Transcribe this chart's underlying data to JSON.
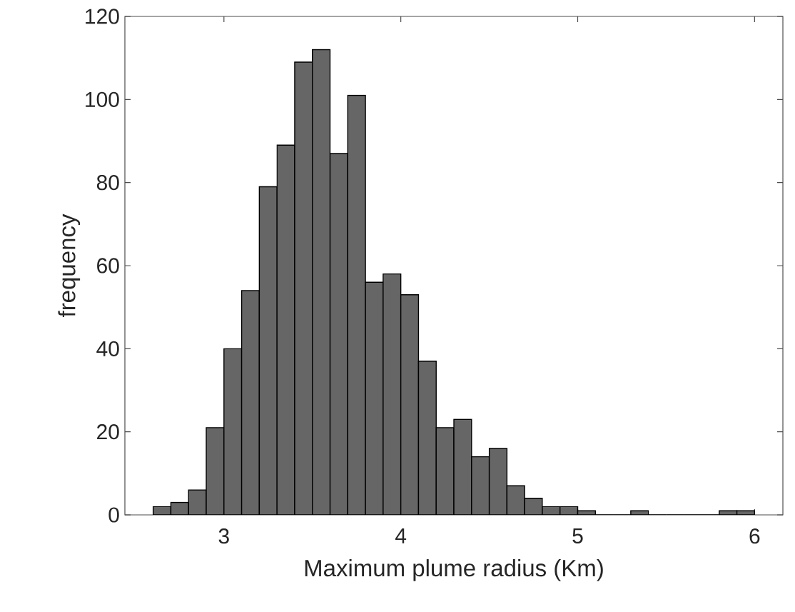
{
  "chart_data": {
    "type": "histogram",
    "xlabel": "Maximum plume radius (Km)",
    "ylabel": "frequency",
    "bins": [
      2.6,
      2.7,
      2.8,
      2.9,
      3.0,
      3.1,
      3.2,
      3.3,
      3.4,
      3.5,
      3.6,
      3.7,
      3.8,
      3.9,
      4.0,
      4.1,
      4.2,
      4.3,
      4.4,
      4.5,
      4.6,
      4.7,
      4.8,
      4.9,
      5.0,
      5.1,
      5.2,
      5.3,
      5.4,
      5.5,
      5.6,
      5.7,
      5.8,
      5.9,
      6.0
    ],
    "values": [
      2,
      3,
      6,
      21,
      40,
      54,
      79,
      89,
      109,
      112,
      87,
      101,
      56,
      58,
      53,
      37,
      21,
      23,
      14,
      16,
      7,
      4,
      2,
      2,
      1,
      0,
      0,
      1,
      0,
      0,
      0,
      0,
      1,
      1
    ],
    "color": "#666666",
    "xlim": [
      2.44,
      6.16
    ],
    "ylim": [
      0,
      120
    ],
    "xticks": [
      3,
      4,
      5,
      6
    ],
    "yticks": [
      0,
      20,
      40,
      60,
      80,
      100,
      120
    ],
    "grid": false
  }
}
